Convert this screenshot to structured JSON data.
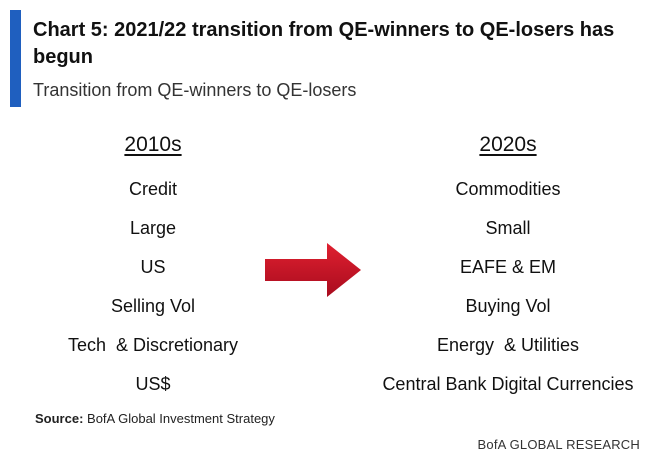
{
  "title": "Chart 5: 2021/22 transition from QE-winners to QE-losers has begun",
  "subtitle": "Transition from QE-winners to QE-losers",
  "left_column": {
    "heading": "2010s",
    "items": [
      "Credit",
      "Large",
      "US",
      "Selling Vol",
      "Tech  & Discretionary",
      "US$"
    ]
  },
  "right_column": {
    "heading": "2020s",
    "items": [
      "Commodities",
      "Small",
      "EAFE & EM",
      "Buying Vol",
      "Energy  & Utilities",
      "Central Bank Digital Currencies"
    ]
  },
  "source": {
    "label": "Source:",
    "text": "BofA Global Investment Strategy"
  },
  "footer": "BofA GLOBAL RESEARCH",
  "colors": {
    "accent": "#1f5fbf",
    "arrow": "#c8102e"
  },
  "icons": {
    "arrow": "right-arrow-icon"
  }
}
